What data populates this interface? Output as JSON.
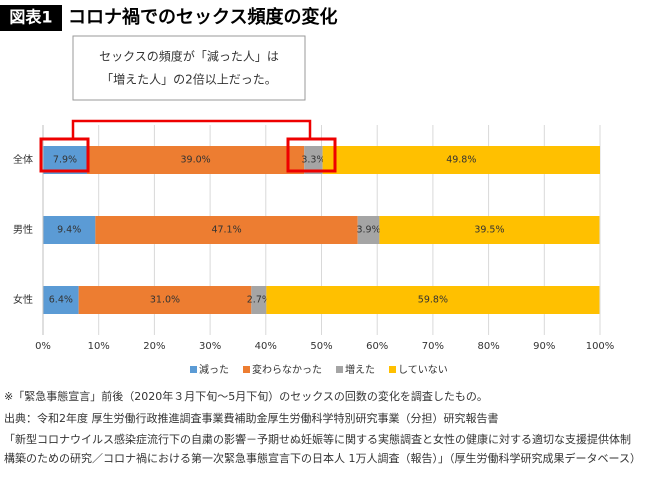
{
  "chart_data": {
    "type": "stacked-bar-horizontal",
    "badge": "図表1",
    "title": "コロナ禍でのセックス頻度の変化",
    "annotation": [
      "セックスの頻度が「減った人」は",
      "「増えた人」の2倍以上だった。"
    ],
    "categories": [
      "全体",
      "男性",
      "女性"
    ],
    "series": [
      {
        "name": "減った",
        "color": "#5b9bd5",
        "values": [
          7.9,
          9.4,
          6.4
        ],
        "value_labels": [
          "7.9%",
          "9.4%",
          "6.4%"
        ]
      },
      {
        "name": "変わらなかった",
        "color": "#ed7d31",
        "values": [
          39.0,
          47.1,
          31.0
        ],
        "value_labels": [
          "39.0%",
          "47.1%",
          "31.0%"
        ]
      },
      {
        "name": "増えた",
        "color": "#a5a5a5",
        "values": [
          3.3,
          3.9,
          2.7
        ],
        "value_labels": [
          "3.3%",
          "3.9%",
          "2.7%"
        ]
      },
      {
        "name": "していない",
        "color": "#ffc000",
        "values": [
          49.8,
          39.5,
          59.8
        ],
        "value_labels": [
          "49.8%",
          "39.5%",
          "59.8%"
        ]
      }
    ],
    "xlim": [
      0,
      100
    ],
    "xticks": [
      {
        "value": 0,
        "label": "0%"
      },
      {
        "value": 10,
        "label": "10%"
      },
      {
        "value": 20,
        "label": "20%"
      },
      {
        "value": 30,
        "label": "30%"
      },
      {
        "value": 40,
        "label": "40%"
      },
      {
        "value": 50,
        "label": "50%"
      },
      {
        "value": 60,
        "label": "60%"
      },
      {
        "value": 70,
        "label": "70%"
      },
      {
        "value": 80,
        "label": "80%"
      },
      {
        "value": 90,
        "label": "90%"
      },
      {
        "value": 100,
        "label": "100%"
      }
    ],
    "grid": true,
    "legend": "bottom",
    "footnotes": [
      "※「緊急事態宣言」前後（2020年３月下旬〜5月下旬）のセックスの回数の変化を調査したもの。",
      "出典：令和2年度 厚生労働行政推進調査事業費補助金厚生労働科学特別研究事業（分担）研究報告書",
      "「新型コロナウイルス感染症流行下の自粛の影響－予期せぬ妊娠等に関する実態調査と女性の健康に対する適切な支援提供体制",
      "構築のための研究／コロナ禍における第一次緊急事態宣言下の日本人 1万人調査（報告）」（厚生労働科学研究成果データベース）"
    ]
  }
}
